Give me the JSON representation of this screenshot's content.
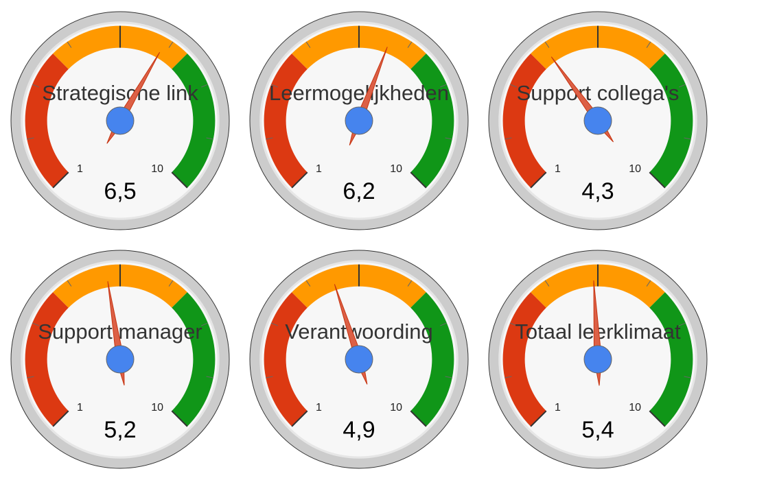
{
  "chart_data": {
    "type": "gauge",
    "min": 1,
    "max": 10,
    "min_label": "1",
    "max_label": "10",
    "bands": [
      {
        "from": 1,
        "to": 4,
        "color": "#dc3912"
      },
      {
        "from": 4,
        "to": 7,
        "color": "#ff9900"
      },
      {
        "from": 7,
        "to": 10,
        "color": "#109618"
      }
    ],
    "gauges": [
      {
        "label": "Strategische link",
        "value": 6.5,
        "value_label": "6,5"
      },
      {
        "label": "Leermogelijkheden",
        "value": 6.2,
        "value_label": "6,2"
      },
      {
        "label": "Support collega's",
        "value": 4.3,
        "value_label": "4,3"
      },
      {
        "label": "Support manager",
        "value": 5.2,
        "value_label": "5,2"
      },
      {
        "label": "Verantwoording",
        "value": 4.9,
        "value_label": "4,9"
      },
      {
        "label": "Totaal leerklimaat",
        "value": 5.4,
        "value_label": "5,4"
      }
    ]
  },
  "colors": {
    "needle": "#dc6046",
    "needle_stroke": "#c63310",
    "hub": "#4684ee",
    "hub_stroke": "#666666",
    "face": "#f7f7f7",
    "rim": "#cccccc",
    "rim_stroke": "#333333"
  }
}
